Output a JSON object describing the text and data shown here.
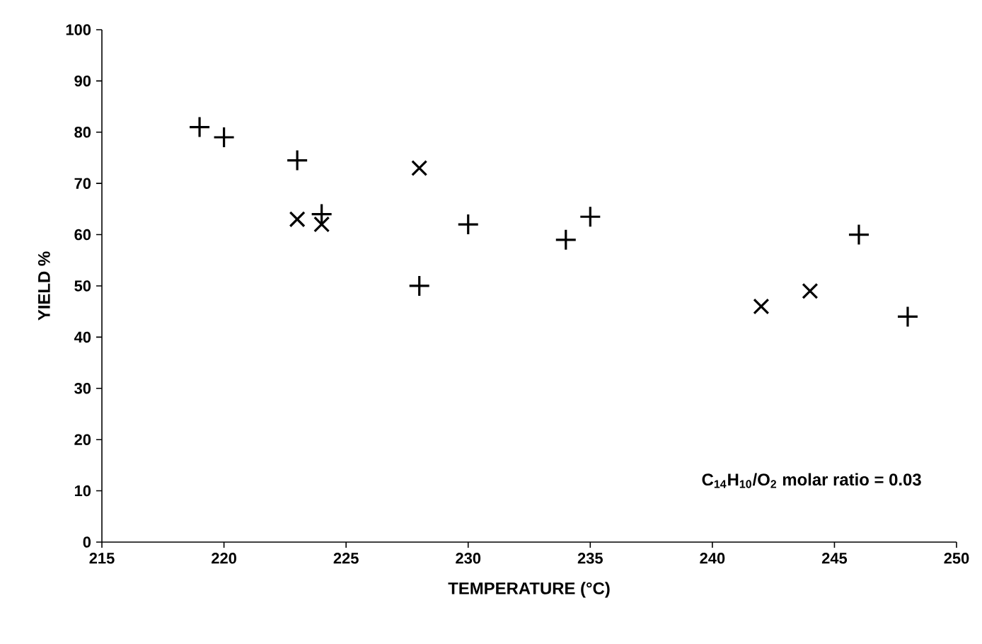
{
  "chart_data": {
    "type": "scatter",
    "xlabel": "TEMPERATURE (°C)",
    "ylabel": "YIELD %",
    "annotations": [
      "C$_{14}$H$_{10}$/O$_{2}$ molar ratio = 0.03"
    ],
    "series": [
      {
        "color": "#000000",
        "marker": "plus",
        "x": [
          219,
          220,
          223,
          224,
          228,
          230,
          234,
          235,
          246,
          248
        ],
        "values": [
          81,
          79,
          74.5,
          64,
          50,
          62,
          59,
          63.5,
          60,
          44
        ]
      },
      {
        "color": "#000000",
        "marker": "cross",
        "x": [
          223,
          224,
          228,
          242,
          244
        ],
        "values": [
          63,
          62,
          73,
          46,
          49
        ]
      }
    ],
    "xlim": [
      215,
      250
    ],
    "xticks": [
      215,
      220,
      225,
      230,
      235,
      240,
      245,
      250
    ],
    "ylim": [
      0,
      100
    ],
    "yticks": [
      0,
      10,
      20,
      30,
      40,
      50,
      60,
      70,
      80,
      90,
      100
    ],
    "grid": false
  }
}
